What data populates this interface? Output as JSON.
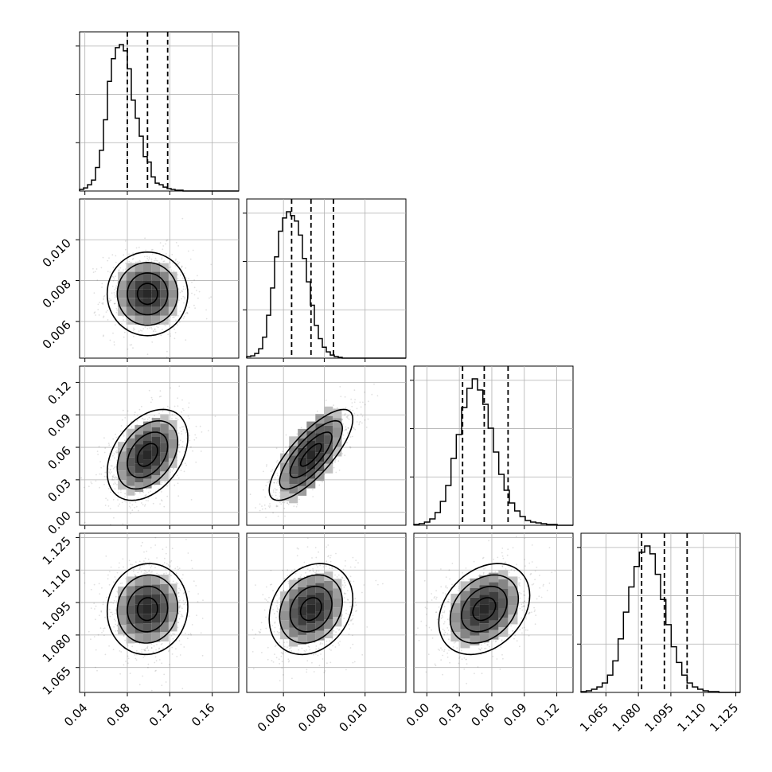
{
  "chart_data": {
    "type": "corner",
    "title": "",
    "parameters": [
      {
        "index": 0,
        "median": 0.099,
        "q16": 0.08,
        "q84": 0.118,
        "range": [
          0.035,
          0.185
        ],
        "ticks": [
          0.04,
          0.08,
          0.12,
          0.16
        ],
        "tick_labels": [
          "0.04",
          "0.08",
          "0.12",
          "0.16"
        ],
        "hist_edges_start": 0.035,
        "hist_bin_width": 0.00375,
        "hist_counts": [
          2,
          4,
          8,
          14,
          30,
          52,
          91,
          140,
          169,
          183,
          187,
          179,
          156,
          116,
          93,
          70,
          44,
          37,
          18,
          10,
          8,
          5,
          3,
          2,
          1,
          1,
          0,
          0,
          0,
          0,
          0,
          0,
          0,
          0,
          0,
          0,
          0,
          0,
          0,
          0
        ]
      },
      {
        "index": 1,
        "median": 0.00735,
        "q16": 0.0064,
        "q84": 0.00845,
        "range": [
          0.0042,
          0.012
        ],
        "ticks": [
          0.006,
          0.008,
          0.01
        ],
        "tick_labels": [
          "0.006",
          "0.008",
          "0.010"
        ],
        "hist_edges_start": 0.0042,
        "hist_bin_width": 0.000195,
        "hist_counts": [
          2,
          3,
          6,
          12,
          27,
          55,
          90,
          130,
          163,
          180,
          188,
          183,
          176,
          158,
          128,
          98,
          68,
          42,
          25,
          14,
          8,
          4,
          2,
          1,
          0,
          0,
          0,
          0,
          0,
          0,
          0,
          0,
          0,
          0,
          0,
          0,
          0,
          0,
          0,
          0
        ]
      },
      {
        "index": 2,
        "median": 0.053,
        "q16": 0.033,
        "q84": 0.075,
        "range": [
          -0.012,
          0.135
        ],
        "ticks": [
          0.0,
          0.03,
          0.06,
          0.09,
          0.12
        ],
        "tick_labels": [
          "0.00",
          "0.03",
          "0.06",
          "0.09",
          "0.12"
        ],
        "hist_edges_start": -0.012,
        "hist_bin_width": 0.0049,
        "hist_counts": [
          1,
          2,
          4,
          8,
          16,
          30,
          50,
          84,
          114,
          148,
          172,
          184,
          170,
          152,
          122,
          92,
          64,
          44,
          28,
          18,
          11,
          6,
          4,
          3,
          2,
          1,
          1,
          0,
          0,
          0
        ],
        "corr": [
          0.38,
          0.78
        ]
      },
      {
        "index": 3,
        "median": 1.092,
        "q16": 1.0815,
        "q84": 1.1025,
        "range": [
          1.0535,
          1.127
        ],
        "ticks": [
          1.065,
          1.08,
          1.095,
          1.11,
          1.125
        ],
        "tick_labels": [
          "1.065",
          "1.080",
          "1.095",
          "1.110",
          "1.125"
        ],
        "hist_edges_start": 1.0535,
        "hist_bin_width": 0.00245,
        "hist_counts": [
          1,
          2,
          4,
          7,
          12,
          22,
          40,
          68,
          102,
          134,
          160,
          178,
          186,
          176,
          150,
          118,
          86,
          58,
          38,
          22,
          12,
          7,
          4,
          2,
          1,
          1,
          0,
          0,
          0,
          0
        ],
        "corr": [
          0.05,
          0.22,
          0.3
        ]
      }
    ],
    "grid": true
  }
}
